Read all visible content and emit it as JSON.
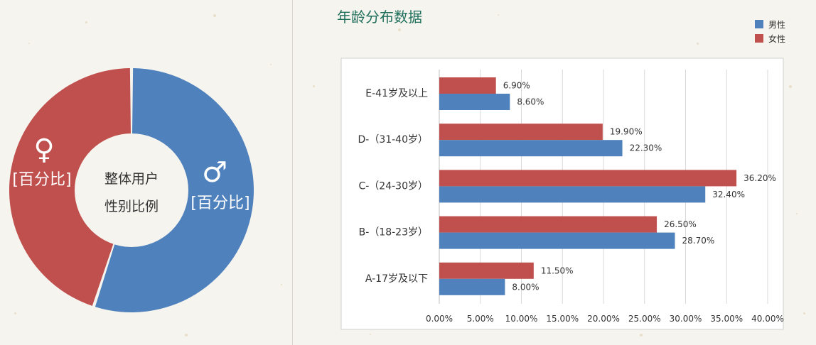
{
  "donut": {
    "center_line1": "整体用户",
    "center_line2": "性别比例",
    "female": {
      "symbol": "♀",
      "label": "[百分比]",
      "color": "#c0504d",
      "share": 0.45
    },
    "male": {
      "symbol": "♂",
      "label": "[百分比]",
      "color": "#4f81bd",
      "share": 0.55
    }
  },
  "chart_data": {
    "type": "bar",
    "orientation": "horizontal",
    "title": "年龄分布数据",
    "categories": [
      "E-41岁及以上",
      "D-（31-40岁）",
      "C-（24-30岁）",
      "B-（18-23岁）",
      "A-17岁及以下"
    ],
    "series": [
      {
        "name": "女性",
        "color": "#c0504d",
        "values": [
          6.9,
          19.9,
          36.2,
          26.5,
          11.5
        ],
        "labels": [
          "6.90%",
          "19.90%",
          "36.20%",
          "26.50%",
          "11.50%"
        ]
      },
      {
        "name": "男性",
        "color": "#4f81bd",
        "values": [
          8.6,
          22.3,
          32.4,
          28.7,
          8.0
        ],
        "labels": [
          "8.60%",
          "22.30%",
          "32.40%",
          "28.70%",
          "8.00%"
        ]
      }
    ],
    "xlim": [
      0,
      40
    ],
    "xticks": [
      "0.00%",
      "5.00%",
      "10.00%",
      "15.00%",
      "20.00%",
      "25.00%",
      "30.00%",
      "35.00%",
      "40.00%"
    ],
    "grid": "vertical",
    "legend": {
      "placement": "top-right",
      "items": [
        {
          "name": "男性",
          "color": "#4f81bd"
        },
        {
          "name": "女性",
          "color": "#c0504d"
        }
      ]
    }
  }
}
